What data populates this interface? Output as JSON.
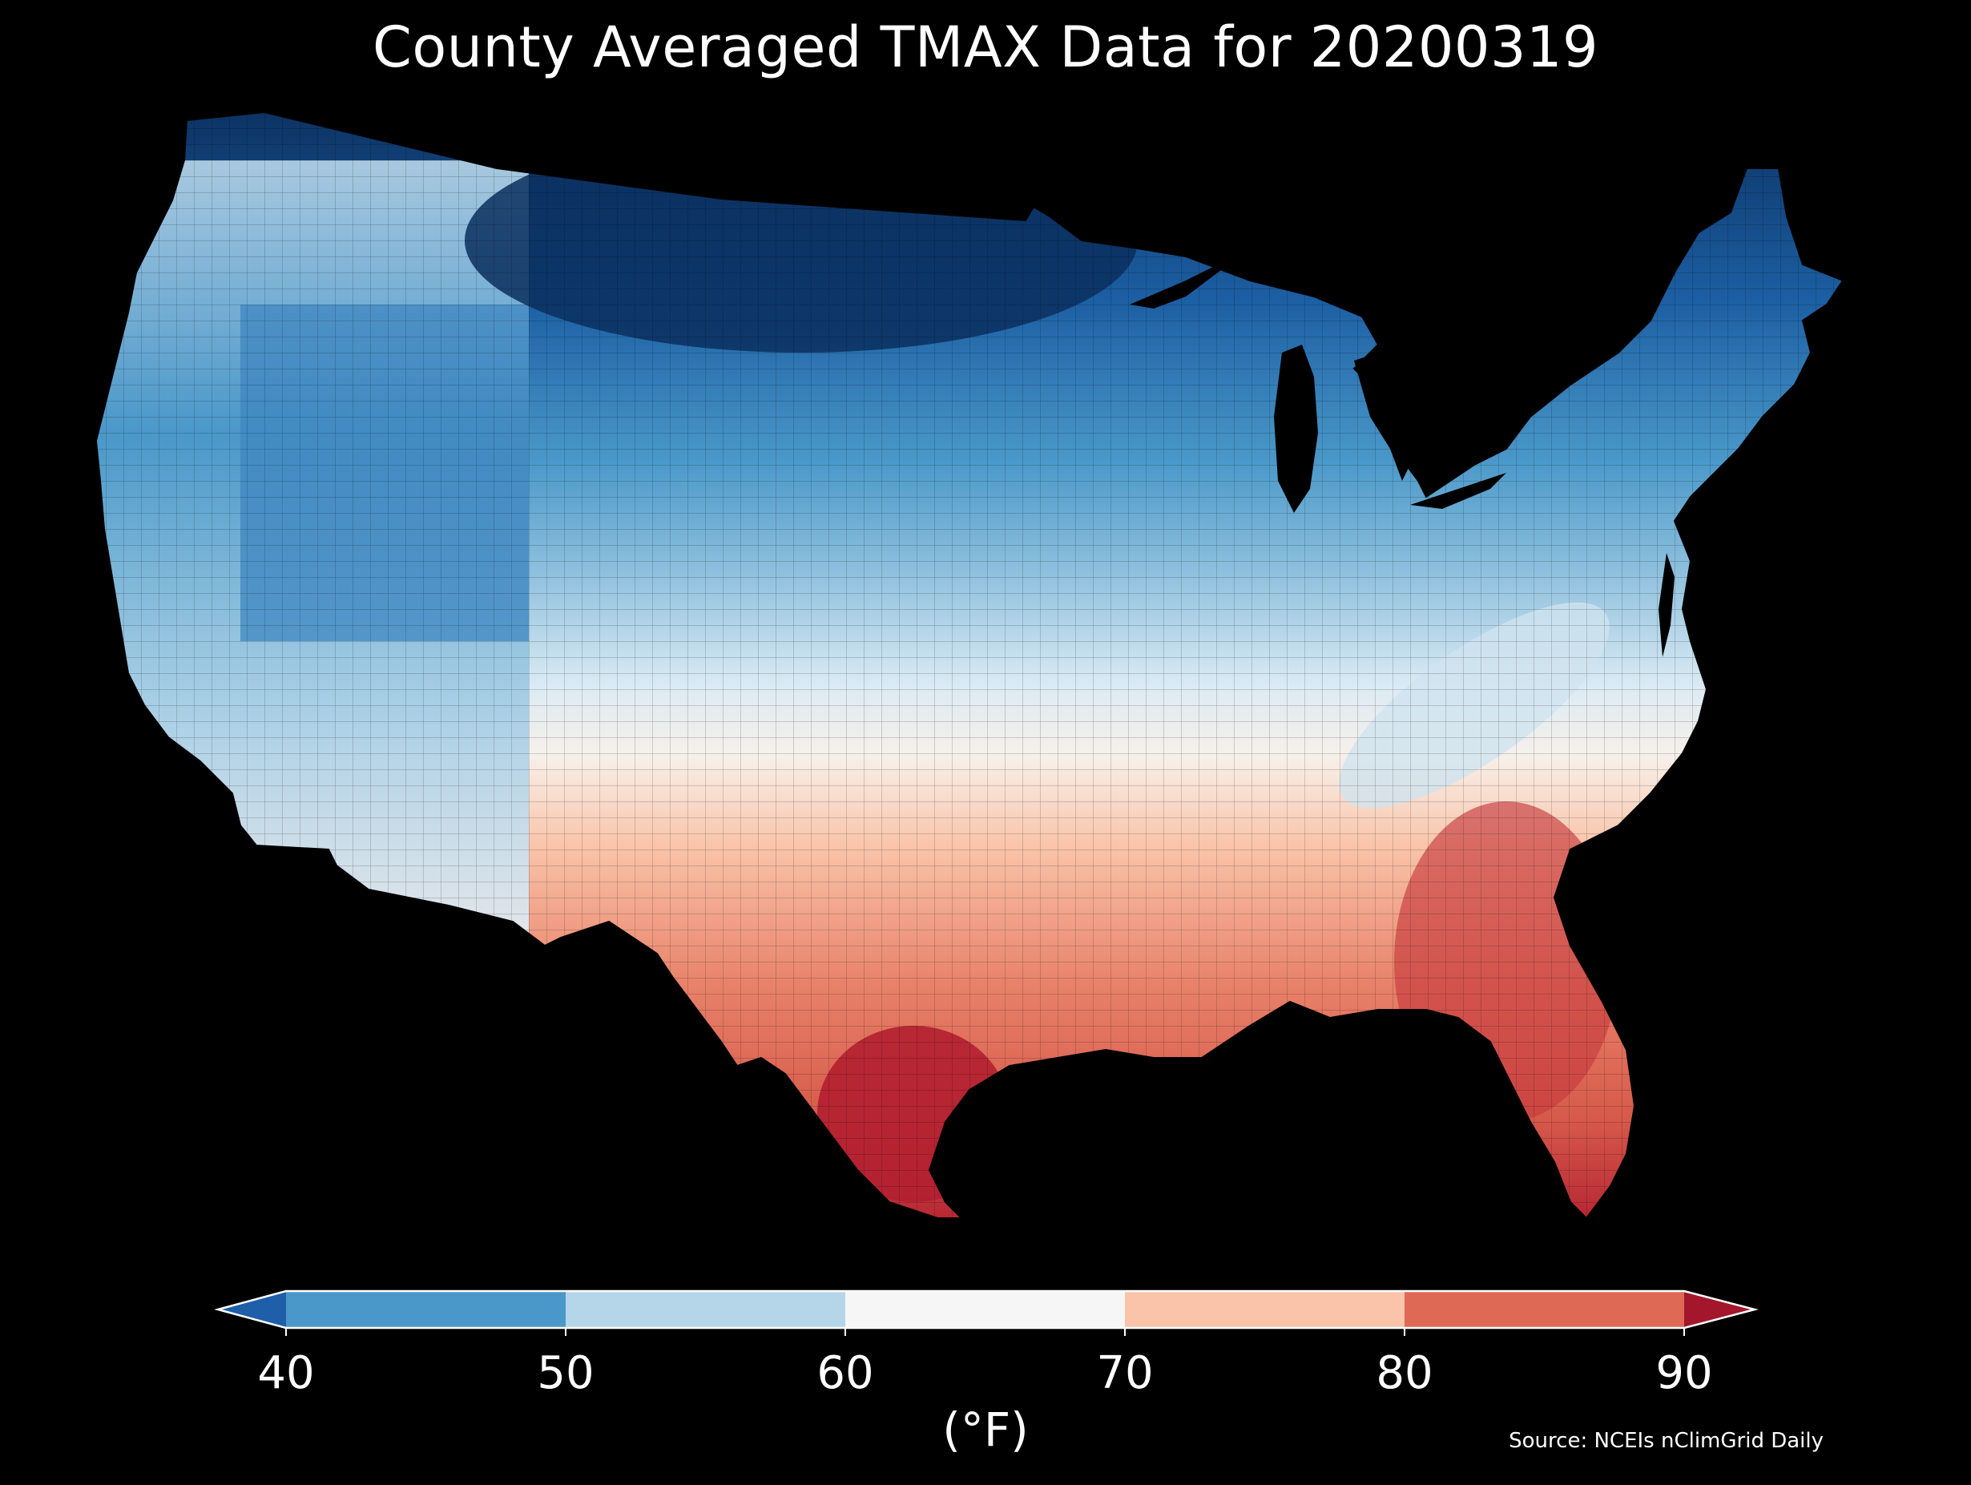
{
  "title": "County Averaged TMAX Data for 20200319",
  "source": "Source: NCEIs nClimGrid Daily",
  "colorbar": {
    "units": "(°F)",
    "ticks": [
      "40",
      "50",
      "60",
      "70",
      "80",
      "90"
    ],
    "bins": [
      {
        "range": "<40",
        "color": "#1f5ea8"
      },
      {
        "range": "40-50",
        "color": "#4a98c9"
      },
      {
        "range": "50-60",
        "color": "#b5d5e9"
      },
      {
        "range": "60-70",
        "color": "#f7f6f6"
      },
      {
        "range": "70-80",
        "color": "#f9c4a9"
      },
      {
        "range": "80-90",
        "color": "#de6a56"
      },
      {
        "range": ">90",
        "color": "#a3162b"
      }
    ]
  },
  "map": {
    "variable": "TMAX",
    "date": "20200319",
    "background": "#000000",
    "pattern": "cool north and west, warm south and southeast",
    "coldest_region": "northern Great Plains",
    "warmest_region": "south Texas and Florida"
  }
}
